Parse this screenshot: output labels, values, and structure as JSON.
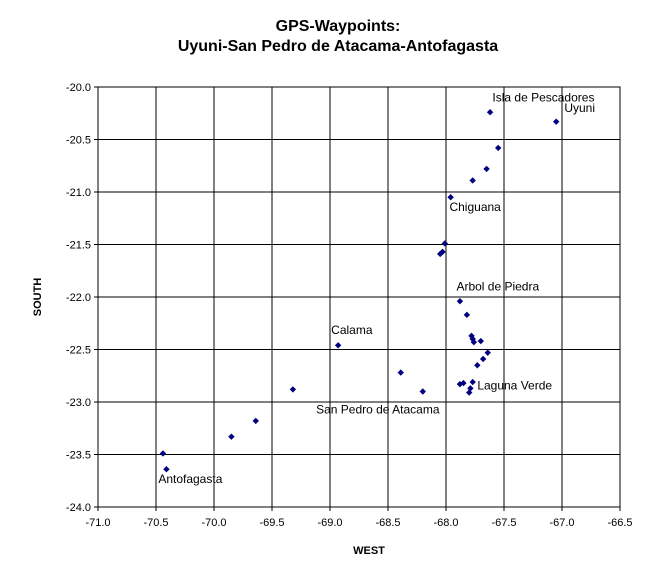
{
  "chart_data": {
    "type": "scatter",
    "title_lines": [
      "GPS-Waypoints:",
      "Uyuni-San Pedro de Atacama-Antofagasta"
    ],
    "xlabel": "WEST",
    "ylabel": "SOUTH",
    "xlim": [
      -71.0,
      -66.5
    ],
    "ylim": [
      -24.0,
      -20.0
    ],
    "x_ticks": [
      "-71.0",
      "-70.5",
      "-70.0",
      "-69.5",
      "-69.0",
      "-68.5",
      "-68.0",
      "-67.5",
      "-67.0",
      "-66.5"
    ],
    "y_ticks": [
      "-20.0",
      "-20.5",
      "-21.0",
      "-21.5",
      "-22.0",
      "-22.5",
      "-23.0",
      "-23.5",
      "-24.0"
    ],
    "grid": "major gridlines",
    "marker_color": "#000080",
    "points": [
      {
        "x": -67.05,
        "y": -20.33
      },
      {
        "x": -67.62,
        "y": -20.24
      },
      {
        "x": -67.55,
        "y": -20.58
      },
      {
        "x": -67.65,
        "y": -20.78
      },
      {
        "x": -67.77,
        "y": -20.89
      },
      {
        "x": -67.96,
        "y": -21.05
      },
      {
        "x": -68.01,
        "y": -21.49
      },
      {
        "x": -68.03,
        "y": -21.57
      },
      {
        "x": -68.05,
        "y": -21.59
      },
      {
        "x": -67.88,
        "y": -22.04
      },
      {
        "x": -67.82,
        "y": -22.17
      },
      {
        "x": -67.78,
        "y": -22.37
      },
      {
        "x": -67.77,
        "y": -22.4
      },
      {
        "x": -67.76,
        "y": -22.43
      },
      {
        "x": -67.7,
        "y": -22.42
      },
      {
        "x": -67.64,
        "y": -22.53
      },
      {
        "x": -67.68,
        "y": -22.59
      },
      {
        "x": -67.73,
        "y": -22.65
      },
      {
        "x": -67.85,
        "y": -22.82
      },
      {
        "x": -67.88,
        "y": -22.83
      },
      {
        "x": -67.77,
        "y": -22.81
      },
      {
        "x": -67.79,
        "y": -22.87
      },
      {
        "x": -67.8,
        "y": -22.91
      },
      {
        "x": -68.2,
        "y": -22.9
      },
      {
        "x": -68.39,
        "y": -22.72
      },
      {
        "x": -68.93,
        "y": -22.46
      },
      {
        "x": -69.32,
        "y": -22.88
      },
      {
        "x": -69.64,
        "y": -23.18
      },
      {
        "x": -69.85,
        "y": -23.33
      },
      {
        "x": -70.44,
        "y": -23.49
      },
      {
        "x": -70.41,
        "y": -23.64
      }
    ],
    "annotations": [
      {
        "text": "Uyuni",
        "x": -66.98,
        "y": -20.24
      },
      {
        "text": "Isla de Pescadores",
        "x": -67.6,
        "y": -20.14
      },
      {
        "text": "Chiguana",
        "x": -67.97,
        "y": -21.18
      },
      {
        "text": "Arbol de Piedra",
        "x": -67.91,
        "y": -21.94
      },
      {
        "text": "Calama",
        "x": -68.99,
        "y": -22.35
      },
      {
        "text": "Laguna Verde",
        "x": -67.73,
        "y": -22.88
      },
      {
        "text": "San Pedro de Atacama",
        "x": -69.12,
        "y": -23.11
      },
      {
        "text": "Antofagasta",
        "x": -70.48,
        "y": -23.77
      }
    ]
  }
}
